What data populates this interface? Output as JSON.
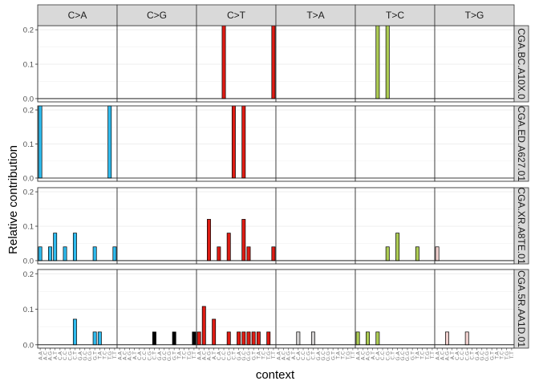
{
  "chart_data": {
    "type": "bar",
    "ylabel": "Relative contribution",
    "xlabel": "context",
    "ylim": [
      0,
      0.21
    ],
    "yticks": [
      "0.0",
      "0.1",
      "0.2"
    ],
    "ytick_values": [
      0,
      0.1,
      0.2
    ],
    "grid": true,
    "mutation_types": [
      "C>A",
      "C>G",
      "C>T",
      "T>A",
      "T>C",
      "T>G"
    ],
    "type_colors": [
      "#2EBAED",
      "#000000",
      "#DE1C14",
      "#D4D2D2",
      "#ADCC54",
      "#F0D0CE"
    ],
    "contexts": [
      "A.A",
      "A.C",
      "A.G",
      "A.T",
      "C.A",
      "C.C",
      "C.G",
      "C.T",
      "G.A",
      "G.C",
      "G.G",
      "G.T",
      "T.A",
      "T.C",
      "T.G",
      "T.T"
    ],
    "samples": [
      {
        "name": "CGA.BC.A10X.0",
        "values": {
          "C>A": [
            0,
            0,
            0,
            0,
            0,
            0,
            0,
            0,
            0,
            0,
            0,
            0,
            0,
            0,
            0,
            0
          ],
          "C>G": [
            0,
            0,
            0,
            0,
            0,
            0,
            0,
            0,
            0,
            0,
            0,
            0,
            0,
            0,
            0,
            0
          ],
          "C>T": [
            0,
            0,
            0,
            0,
            0,
            1.0,
            0,
            0,
            0,
            0,
            0,
            0,
            0,
            0,
            0,
            1.0
          ],
          "T>A": [
            0,
            0,
            0,
            0,
            0,
            0,
            0,
            0,
            0,
            0,
            0,
            0,
            0,
            0,
            0,
            0
          ],
          "T>C": [
            0,
            0,
            0,
            0,
            1.0,
            0,
            1.0,
            0,
            0,
            0,
            0,
            0,
            0,
            0,
            0,
            0
          ],
          "T>G": [
            0,
            0,
            0,
            0,
            0,
            0,
            0,
            0,
            0,
            0,
            0,
            0,
            0,
            0,
            0,
            0
          ]
        }
      },
      {
        "name": "CGA.ED.A627.01",
        "values": {
          "C>A": [
            1.0,
            0,
            0,
            0,
            0,
            0,
            0,
            0,
            0,
            0,
            0,
            0,
            0,
            0,
            1.0,
            0
          ],
          "C>G": [
            0,
            0,
            0,
            0,
            0,
            0,
            0,
            0,
            0,
            0,
            0,
            0,
            0,
            0,
            0,
            0
          ],
          "C>T": [
            0,
            0,
            0,
            0,
            0,
            0,
            0,
            1.0,
            0,
            1.0,
            0,
            0,
            0,
            0,
            0,
            0
          ],
          "T>A": [
            0,
            0,
            0,
            0,
            0,
            0,
            0,
            0,
            0,
            0,
            0,
            0,
            0,
            0,
            0,
            0
          ],
          "T>C": [
            0,
            0,
            0,
            0,
            0,
            0,
            0,
            0,
            0,
            0,
            0,
            0,
            0,
            0,
            0,
            0
          ],
          "T>G": [
            0,
            0,
            0,
            0,
            0,
            0,
            0,
            0,
            0,
            0,
            0,
            0,
            0,
            0,
            0,
            0
          ]
        }
      },
      {
        "name": "CGA.XR.A8TE.01",
        "values": {
          "C>A": [
            0.04,
            0,
            0.04,
            0.08,
            0,
            0.04,
            0,
            0.08,
            0,
            0,
            0,
            0.04,
            0,
            0,
            0,
            0.04
          ],
          "C>G": [
            0,
            0,
            0,
            0,
            0,
            0,
            0,
            0,
            0,
            0,
            0,
            0,
            0,
            0,
            0,
            0
          ],
          "C>T": [
            0,
            0,
            0.12,
            0,
            0.04,
            0,
            0.08,
            0,
            0,
            0.12,
            0.04,
            0,
            0,
            0,
            0,
            0.04
          ],
          "T>A": [
            0,
            0,
            0,
            0,
            0,
            0,
            0,
            0,
            0,
            0,
            0,
            0,
            0,
            0,
            0,
            0
          ],
          "T>C": [
            0,
            0,
            0,
            0,
            0,
            0,
            0.04,
            0,
            0.08,
            0,
            0,
            0,
            0.04,
            0,
            0,
            0
          ],
          "T>G": [
            0.04,
            0,
            0,
            0,
            0,
            0,
            0,
            0,
            0,
            0,
            0,
            0,
            0,
            0,
            0,
            0
          ]
        }
      },
      {
        "name": "CGA.5R.AA1D.01",
        "values": {
          "C>A": [
            0,
            0,
            0,
            0,
            0,
            0,
            0,
            0.072,
            0,
            0,
            0,
            0.036,
            0.036,
            0,
            0,
            0
          ],
          "C>G": [
            0,
            0,
            0,
            0,
            0,
            0,
            0,
            0.036,
            0,
            0,
            0,
            0.036,
            0,
            0,
            0,
            0.036
          ],
          "C>T": [
            0.036,
            0.108,
            0,
            0.072,
            0,
            0,
            0.036,
            0,
            0.036,
            0.036,
            0.036,
            0.036,
            0.036,
            0,
            0.036,
            0
          ],
          "T>A": [
            0,
            0,
            0,
            0,
            0.036,
            0,
            0,
            0.036,
            0,
            0,
            0,
            0,
            0,
            0,
            0,
            0
          ],
          "T>C": [
            0.036,
            0,
            0.036,
            0,
            0.036,
            0,
            0,
            0,
            0,
            0,
            0,
            0,
            0,
            0,
            0,
            0
          ],
          "T>G": [
            0,
            0,
            0.036,
            0,
            0,
            0,
            0.036,
            0,
            0,
            0,
            0,
            0,
            0,
            0,
            0,
            0
          ]
        }
      }
    ]
  }
}
